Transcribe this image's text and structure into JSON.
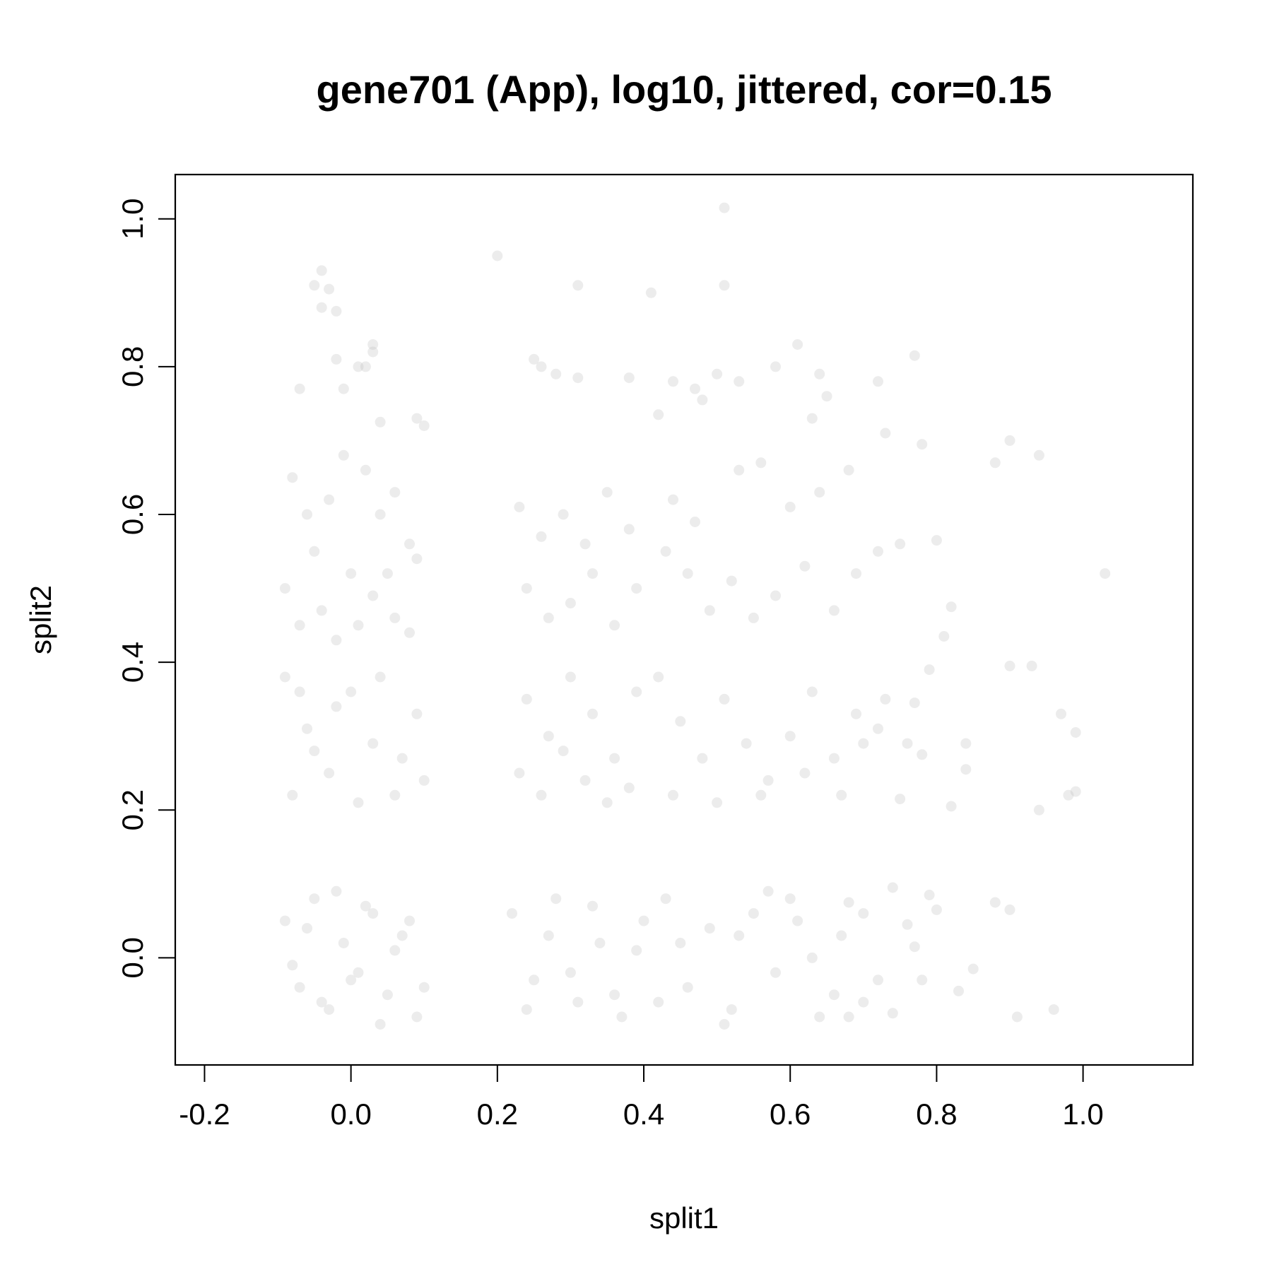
{
  "chart_data": {
    "type": "scatter",
    "title": "gene701 (App), log10, jittered, cor=0.15",
    "xlabel": "split1",
    "ylabel": "split2",
    "xlim": [
      -0.24,
      1.15
    ],
    "ylim": [
      -0.145,
      1.06
    ],
    "x_ticks": [
      -0.2,
      0.0,
      0.2,
      0.4,
      0.6,
      0.8,
      1.0
    ],
    "x_tick_labels": [
      "-0.2",
      "0.0",
      "0.2",
      "0.4",
      "0.6",
      "0.8",
      "1.0"
    ],
    "y_ticks": [
      0.0,
      0.2,
      0.4,
      0.6,
      0.8,
      1.0
    ],
    "y_tick_labels": [
      "0.0",
      "0.2",
      "0.4",
      "0.6",
      "0.8",
      "1.0"
    ],
    "grid": false,
    "legend": "none",
    "point_color": "#b3b3b3",
    "point_opacity": 0.25,
    "series": [
      {
        "points": [
          [
            -0.05,
            0.91
          ],
          [
            -0.04,
            0.93
          ],
          [
            -0.04,
            0.88
          ],
          [
            -0.03,
            0.905
          ],
          [
            -0.02,
            0.875
          ],
          [
            0.2,
            0.95
          ],
          [
            0.31,
            0.91
          ],
          [
            0.41,
            0.9
          ],
          [
            0.51,
            1.015
          ],
          [
            0.51,
            0.91
          ],
          [
            0.03,
            0.83
          ],
          [
            0.03,
            0.82
          ],
          [
            -0.02,
            0.81
          ],
          [
            0.01,
            0.8
          ],
          [
            0.02,
            0.8
          ],
          [
            0.25,
            0.81
          ],
          [
            0.26,
            0.8
          ],
          [
            0.28,
            0.79
          ],
          [
            0.31,
            0.785
          ],
          [
            0.38,
            0.785
          ],
          [
            0.44,
            0.78
          ],
          [
            0.47,
            0.77
          ],
          [
            0.5,
            0.79
          ],
          [
            0.53,
            0.78
          ],
          [
            0.58,
            0.8
          ],
          [
            0.61,
            0.83
          ],
          [
            0.64,
            0.79
          ],
          [
            0.72,
            0.78
          ],
          [
            0.77,
            0.815
          ],
          [
            0.65,
            0.76
          ],
          [
            -0.07,
            0.77
          ],
          [
            -0.01,
            0.77
          ],
          [
            0.1,
            0.72
          ],
          [
            0.09,
            0.73
          ],
          [
            0.04,
            0.725
          ],
          [
            0.42,
            0.735
          ],
          [
            0.48,
            0.755
          ],
          [
            0.63,
            0.73
          ],
          [
            0.73,
            0.71
          ],
          [
            0.78,
            0.695
          ],
          [
            0.9,
            0.7
          ],
          [
            0.94,
            0.68
          ],
          [
            0.88,
            0.67
          ],
          [
            1.03,
            0.52
          ],
          [
            0.8,
            0.565
          ],
          [
            0.82,
            0.475
          ],
          [
            0.81,
            0.435
          ],
          [
            0.79,
            0.39
          ],
          [
            0.78,
            0.275
          ],
          [
            0.76,
            0.29
          ],
          [
            0.77,
            0.345
          ],
          [
            0.84,
            0.29
          ],
          [
            0.84,
            0.255
          ],
          [
            0.82,
            0.205
          ],
          [
            0.75,
            0.215
          ],
          [
            0.9,
            0.395
          ],
          [
            0.93,
            0.395
          ],
          [
            0.97,
            0.33
          ],
          [
            0.99,
            0.305
          ],
          [
            0.98,
            0.22
          ],
          [
            0.99,
            0.225
          ],
          [
            0.94,
            0.2
          ],
          [
            0.88,
            0.075
          ],
          [
            0.9,
            0.065
          ],
          [
            0.91,
            -0.08
          ],
          [
            0.96,
            -0.07
          ],
          [
            0.85,
            -0.015
          ],
          [
            0.83,
            -0.045
          ],
          [
            0.8,
            0.065
          ],
          [
            0.79,
            0.085
          ],
          [
            0.78,
            -0.03
          ],
          [
            0.77,
            0.015
          ],
          [
            0.76,
            0.045
          ],
          [
            0.74,
            0.095
          ],
          [
            0.74,
            -0.075
          ],
          [
            0.72,
            -0.03
          ],
          [
            0.7,
            0.06
          ],
          [
            0.7,
            -0.06
          ],
          [
            0.68,
            0.075
          ],
          [
            0.68,
            -0.08
          ],
          [
            -0.08,
            0.65
          ],
          [
            -0.06,
            0.6
          ],
          [
            -0.05,
            0.55
          ],
          [
            -0.03,
            0.62
          ],
          [
            -0.01,
            0.68
          ],
          [
            0.02,
            0.66
          ],
          [
            0.04,
            0.6
          ],
          [
            0.06,
            0.63
          ],
          [
            0.08,
            0.56
          ],
          [
            -0.09,
            0.5
          ],
          [
            -0.07,
            0.45
          ],
          [
            -0.04,
            0.47
          ],
          [
            0.0,
            0.52
          ],
          [
            0.03,
            0.49
          ],
          [
            0.06,
            0.46
          ],
          [
            0.09,
            0.54
          ],
          [
            0.08,
            0.44
          ],
          [
            -0.02,
            0.43
          ],
          [
            0.01,
            0.45
          ],
          [
            0.05,
            0.52
          ],
          [
            0.23,
            0.61
          ],
          [
            0.26,
            0.57
          ],
          [
            0.29,
            0.6
          ],
          [
            0.32,
            0.56
          ],
          [
            0.35,
            0.63
          ],
          [
            0.38,
            0.58
          ],
          [
            0.24,
            0.5
          ],
          [
            0.27,
            0.46
          ],
          [
            0.3,
            0.48
          ],
          [
            0.33,
            0.52
          ],
          [
            0.36,
            0.45
          ],
          [
            0.39,
            0.5
          ],
          [
            0.43,
            0.55
          ],
          [
            0.46,
            0.52
          ],
          [
            0.49,
            0.47
          ],
          [
            0.52,
            0.51
          ],
          [
            0.55,
            0.46
          ],
          [
            0.58,
            0.49
          ],
          [
            0.62,
            0.53
          ],
          [
            0.66,
            0.47
          ],
          [
            0.69,
            0.52
          ],
          [
            0.72,
            0.55
          ],
          [
            0.75,
            0.56
          ],
          [
            0.44,
            0.62
          ],
          [
            0.47,
            0.59
          ],
          [
            0.53,
            0.66
          ],
          [
            0.56,
            0.67
          ],
          [
            0.6,
            0.61
          ],
          [
            0.64,
            0.63
          ],
          [
            0.68,
            0.66
          ],
          [
            0.24,
            0.35
          ],
          [
            0.27,
            0.3
          ],
          [
            0.3,
            0.38
          ],
          [
            0.33,
            0.33
          ],
          [
            0.36,
            0.27
          ],
          [
            0.39,
            0.36
          ],
          [
            0.23,
            0.25
          ],
          [
            0.26,
            0.22
          ],
          [
            0.29,
            0.28
          ],
          [
            0.32,
            0.24
          ],
          [
            0.35,
            0.21
          ],
          [
            0.38,
            0.23
          ],
          [
            0.42,
            0.38
          ],
          [
            0.45,
            0.32
          ],
          [
            0.48,
            0.27
          ],
          [
            0.51,
            0.35
          ],
          [
            0.54,
            0.29
          ],
          [
            0.57,
            0.24
          ],
          [
            0.6,
            0.3
          ],
          [
            0.63,
            0.36
          ],
          [
            0.66,
            0.27
          ],
          [
            0.69,
            0.33
          ],
          [
            0.72,
            0.31
          ],
          [
            0.44,
            0.22
          ],
          [
            0.5,
            0.21
          ],
          [
            0.56,
            0.22
          ],
          [
            0.62,
            0.25
          ],
          [
            0.67,
            0.22
          ],
          [
            0.7,
            0.29
          ],
          [
            0.73,
            0.35
          ],
          [
            -0.09,
            0.38
          ],
          [
            -0.06,
            0.31
          ],
          [
            -0.03,
            0.25
          ],
          [
            0.0,
            0.36
          ],
          [
            0.03,
            0.29
          ],
          [
            0.06,
            0.22
          ],
          [
            0.09,
            0.33
          ],
          [
            -0.08,
            0.22
          ],
          [
            -0.05,
            0.28
          ],
          [
            -0.02,
            0.34
          ],
          [
            0.01,
            0.21
          ],
          [
            0.04,
            0.38
          ],
          [
            0.07,
            0.27
          ],
          [
            0.1,
            0.24
          ],
          [
            -0.07,
            0.36
          ],
          [
            -0.09,
            0.05
          ],
          [
            -0.07,
            -0.04
          ],
          [
            -0.05,
            0.08
          ],
          [
            -0.03,
            -0.07
          ],
          [
            -0.01,
            0.02
          ],
          [
            0.01,
            -0.02
          ],
          [
            0.03,
            0.06
          ],
          [
            0.05,
            -0.05
          ],
          [
            0.07,
            0.03
          ],
          [
            0.09,
            -0.08
          ],
          [
            -0.08,
            -0.01
          ],
          [
            -0.06,
            0.04
          ],
          [
            -0.04,
            -0.06
          ],
          [
            -0.02,
            0.09
          ],
          [
            0.0,
            -0.03
          ],
          [
            0.02,
            0.07
          ],
          [
            0.04,
            -0.09
          ],
          [
            0.06,
            0.01
          ],
          [
            0.08,
            0.05
          ],
          [
            0.1,
            -0.04
          ],
          [
            0.22,
            0.06
          ],
          [
            0.25,
            -0.03
          ],
          [
            0.28,
            0.08
          ],
          [
            0.31,
            -0.06
          ],
          [
            0.34,
            0.02
          ],
          [
            0.37,
            -0.08
          ],
          [
            0.4,
            0.05
          ],
          [
            0.24,
            -0.07
          ],
          [
            0.27,
            0.03
          ],
          [
            0.3,
            -0.02
          ],
          [
            0.33,
            0.07
          ],
          [
            0.36,
            -0.05
          ],
          [
            0.39,
            0.01
          ],
          [
            0.43,
            0.08
          ],
          [
            0.46,
            -0.04
          ],
          [
            0.49,
            0.04
          ],
          [
            0.52,
            -0.07
          ],
          [
            0.55,
            0.06
          ],
          [
            0.58,
            -0.02
          ],
          [
            0.61,
            0.05
          ],
          [
            0.64,
            -0.08
          ],
          [
            0.67,
            0.03
          ],
          [
            0.45,
            0.02
          ],
          [
            0.51,
            -0.09
          ],
          [
            0.57,
            0.09
          ],
          [
            0.63,
            0.0
          ],
          [
            0.66,
            -0.05
          ],
          [
            0.53,
            0.03
          ],
          [
            0.42,
            -0.06
          ],
          [
            0.6,
            0.08
          ]
        ]
      }
    ]
  }
}
